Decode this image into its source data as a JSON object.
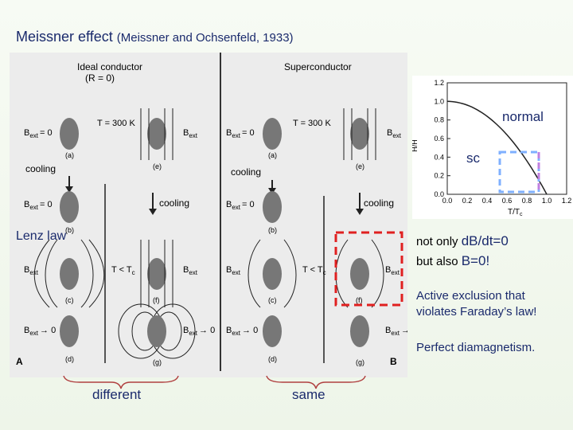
{
  "slide": {
    "title": "Meissner effect",
    "title_citation": "(Meissner and Ochsenfeld, 1933)"
  },
  "figure": {
    "ideal_conductor": "Ideal conductor",
    "ideal_conductor_R": "(R = 0)",
    "superconductor": "Superconductor",
    "T300": "T = 300 K",
    "Bext0": "B",
    "ext_sub": "ext",
    "eq0": "= 0",
    "arrow0": "→ 0",
    "Bext": "B",
    "cooling": "cooling",
    "TltTc": "T < T",
    "c_sub": "c",
    "panels": [
      "(a)",
      "(b)",
      "(c)",
      "(d)",
      "(e)",
      "(f)",
      "(g)"
    ],
    "A": "A",
    "B": "B"
  },
  "graph": {
    "y_label": "H",
    "y_label_tail": "/H",
    "y_ticks": [
      "1.2",
      "1.0",
      "0.8",
      "0.6",
      "0.4",
      "0.2",
      "0.0"
    ],
    "x_ticks": [
      "0.0",
      "0.2",
      "0.4",
      "0.6",
      "0.8",
      "1.0",
      "1.2"
    ],
    "x_label": "T/T",
    "x_label_sub": "c",
    "normal_label": "normal",
    "sc_label": "sc"
  },
  "annotations": {
    "lenz": "Lenz law",
    "note1_prefix": "not only ",
    "note1_em": "dB/dt=0",
    "note2_prefix": "but  also ",
    "note2_em": "B=0!",
    "note3_line1": "Active exclusion that",
    "note3_line2": "violates Faraday’s law!",
    "note4": "Perfect diamagnetism.",
    "different": "different",
    "same": "same"
  },
  "colors": {
    "accent": "#1a2a6c",
    "dashed_red": "#e02020",
    "dashed_blue": "#7fb0ff",
    "dashed_violet": "#c080e0"
  }
}
